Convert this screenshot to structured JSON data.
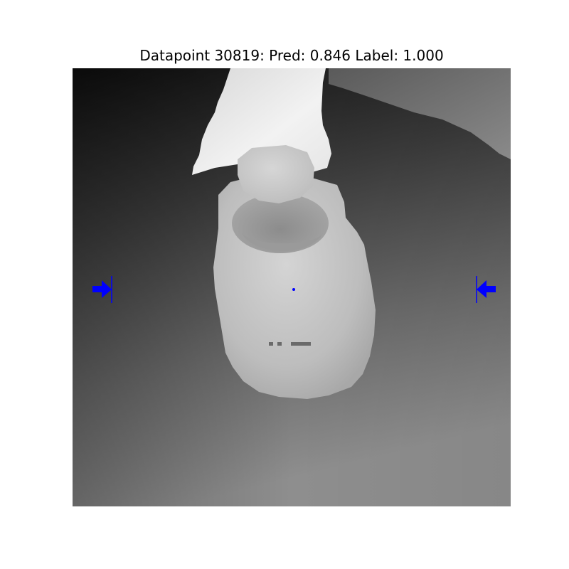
{
  "title": "Datapoint 30819: Pred: 0.846 Label: 1.000",
  "image": {
    "kind": "grayscale depth image",
    "subject": "cylindrical cup held under a white overhanging object",
    "marker_color": "#0000ff"
  }
}
